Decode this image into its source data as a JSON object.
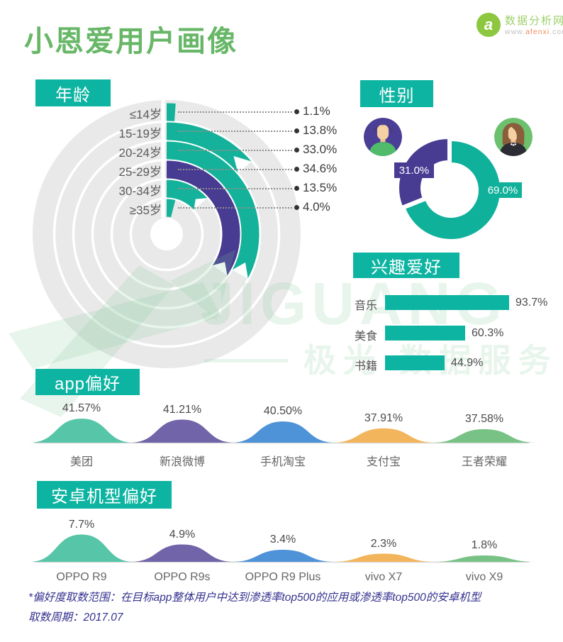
{
  "page": {
    "title": "小恩爱用户画像"
  },
  "logo": {
    "name": "数据分析网",
    "glyph": "a",
    "url": "www.afenxi.com",
    "url_parts": [
      "www.",
      "afenxi",
      ".com"
    ]
  },
  "watermark": {
    "brand": "JIGUANG",
    "caption": "极光 数据服务"
  },
  "sections": {
    "age": {
      "header": "年龄"
    },
    "gender": {
      "header": "性别"
    },
    "interests": {
      "header": "兴趣爱好"
    },
    "apps": {
      "header": "app偏好"
    },
    "devices": {
      "header": "安卓机型偏好"
    }
  },
  "footer": {
    "line1": "*偏好度取数范围：在目标app整体用户中达到渗透率top500的应用或渗透率top500的安卓机型",
    "line2": "取数周期：2017.07"
  },
  "colors": {
    "title_green": "#68b768",
    "teal": "#0db4a1",
    "radial_teal": "#14b29a",
    "purple": "#473b92",
    "gray_ring": "#e9e9e9",
    "baseline_gray": "#d9d9d9",
    "hill_colors": [
      "#57c5a7",
      "#7164a8",
      "#4e92d8",
      "#f3b55b",
      "#78c285"
    ],
    "watermark_green": "rgba(125,198,148,0.18)",
    "footer_blue": "#35318e"
  },
  "chart_data": [
    {
      "id": "age",
      "type": "bar",
      "subtype": "radial-rings",
      "title": "年龄",
      "categories": [
        "≤14岁",
        "15-19岁",
        "20-24岁",
        "25-29岁",
        "30-34岁",
        "≥35岁"
      ],
      "values": [
        1.1,
        13.8,
        33.0,
        34.6,
        13.5,
        4.0
      ],
      "labels": [
        "1.1%",
        "13.8%",
        "33.0%",
        "34.6%",
        "13.5%",
        "4.0%"
      ],
      "colors": [
        "#14b29a",
        "#14b29a",
        "#14b29a",
        "#473b92",
        "#14b29a",
        "#14b29a"
      ],
      "unit": "%",
      "start_angle": "top",
      "direction": "clockwise",
      "ring_order": "outer-to-inner"
    },
    {
      "id": "gender",
      "type": "pie",
      "subtype": "donut",
      "title": "性别",
      "categories": [
        "female",
        "male"
      ],
      "values": [
        69.0,
        31.0
      ],
      "labels": [
        "69.0%",
        "31.0%"
      ],
      "colors": [
        "#0fb19b",
        "#473b92"
      ],
      "legend": "avatars (male left on purple, female right on green)"
    },
    {
      "id": "interests",
      "type": "bar",
      "subtype": "horizontal",
      "title": "兴趣爱好",
      "categories": [
        "音乐",
        "美食",
        "书籍"
      ],
      "values": [
        93.7,
        60.3,
        44.9
      ],
      "labels": [
        "93.7%",
        "60.3%",
        "44.9%"
      ],
      "xlim": [
        0,
        100
      ],
      "unit": "%"
    },
    {
      "id": "apps",
      "type": "area",
      "subtype": "hills",
      "title": "app偏好",
      "categories": [
        "美团",
        "新浪微博",
        "手机淘宝",
        "支付宝",
        "王者荣耀"
      ],
      "values": [
        41.57,
        41.21,
        40.5,
        37.91,
        37.58
      ],
      "labels": [
        "41.57%",
        "41.21%",
        "40.50%",
        "37.91%",
        "37.58%"
      ],
      "colors": [
        "#57c5a7",
        "#7164a8",
        "#4e92d8",
        "#f3b55b",
        "#78c285"
      ],
      "unit": "%"
    },
    {
      "id": "devices",
      "type": "area",
      "subtype": "hills",
      "title": "安卓机型偏好",
      "categories": [
        "OPPO R9",
        "OPPO R9s",
        "OPPO R9 Plus",
        "vivo X7",
        "vivo X9"
      ],
      "values": [
        7.7,
        4.9,
        3.4,
        2.3,
        1.8
      ],
      "labels": [
        "7.7%",
        "4.9%",
        "3.4%",
        "2.3%",
        "1.8%"
      ],
      "colors": [
        "#57c5a7",
        "#7164a8",
        "#4e92d8",
        "#f3b55b",
        "#78c285"
      ],
      "unit": "%"
    }
  ]
}
